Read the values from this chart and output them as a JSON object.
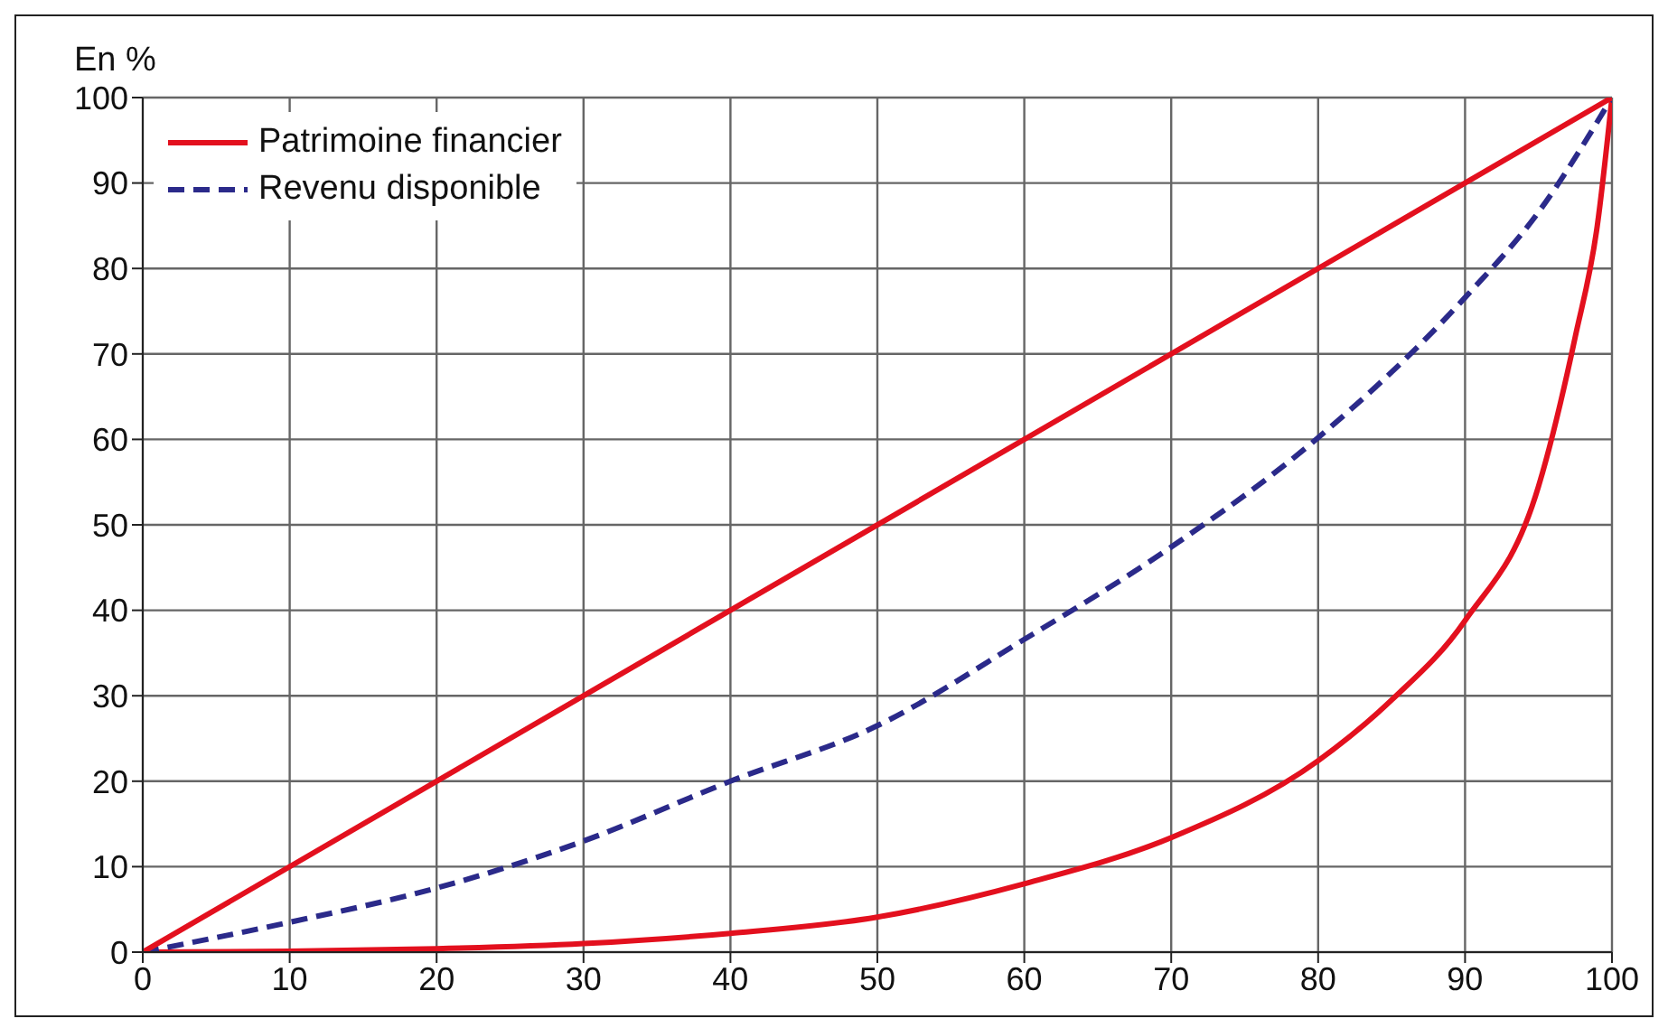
{
  "chart_data": {
    "type": "line",
    "ylabel": "En %",
    "xlim": [
      0,
      100
    ],
    "ylim": [
      0,
      100
    ],
    "xticks": [
      0,
      10,
      20,
      30,
      40,
      50,
      60,
      70,
      80,
      90,
      100
    ],
    "yticks": [
      0,
      10,
      20,
      30,
      40,
      50,
      60,
      70,
      80,
      90,
      100
    ],
    "grid": true,
    "legend": "top left",
    "marker": "none",
    "series": [
      {
        "name": "Patrimoine financier",
        "color": "#e3101e",
        "line_style": "solid",
        "x": [
          0,
          10,
          20,
          30,
          40,
          50,
          60,
          70,
          80,
          85,
          90,
          95,
          97.5,
          99,
          100
        ],
        "values": [
          0,
          0.1,
          0.4,
          1,
          2.2,
          4.1,
          8,
          13.4,
          22.4,
          29.5,
          38.8,
          54.5,
          72,
          85,
          100
        ]
      },
      {
        "name": "Revenu disponible",
        "color": "#2b2a8a",
        "line_style": "dashed",
        "x": [
          0,
          10,
          20,
          30,
          40,
          50,
          60,
          70,
          80,
          90,
          95,
          100
        ],
        "values": [
          0,
          3.5,
          7.5,
          13,
          20,
          26.5,
          36.6,
          47.4,
          60.2,
          76.6,
          86.6,
          100
        ]
      },
      {
        "color": "#e3101e",
        "line_style": "solid",
        "x": [
          0,
          100
        ],
        "values": [
          0,
          100
        ]
      }
    ]
  }
}
